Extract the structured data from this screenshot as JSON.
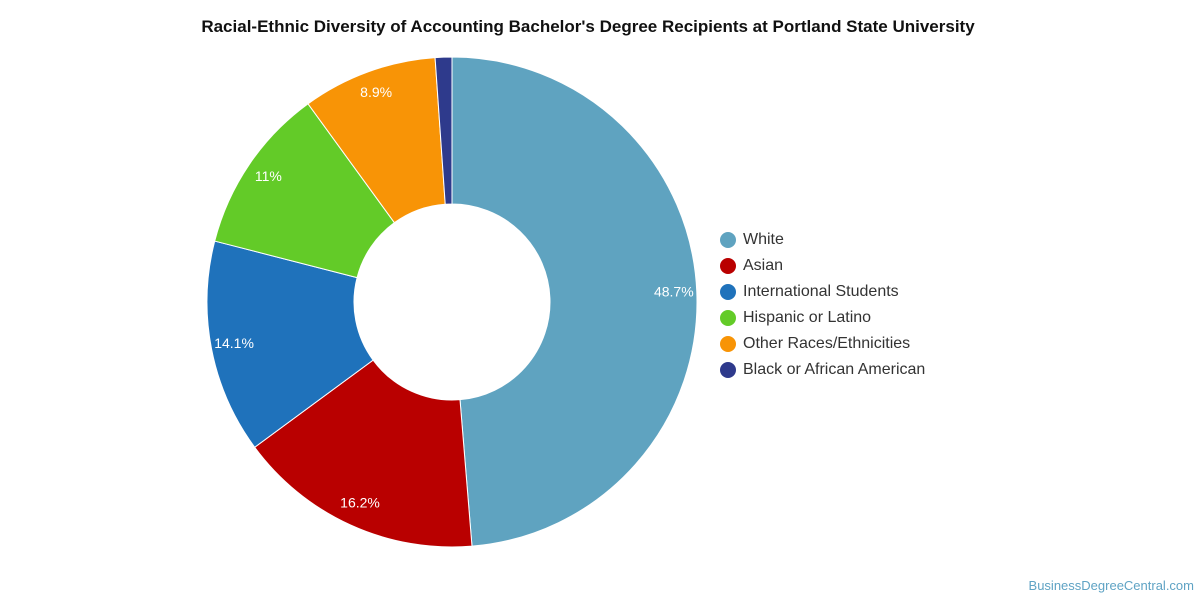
{
  "chart_data": {
    "type": "pie",
    "title": "Racial-Ethnic Diversity of Accounting Bachelor's Degree Recipients at Portland State University",
    "legend_position": "right",
    "slices": [
      {
        "label": "White",
        "value": 48.7,
        "data_label": "48.7%",
        "color": "#5fa3c0"
      },
      {
        "label": "Asian",
        "value": 16.2,
        "data_label": "16.2%",
        "color": "#b90000"
      },
      {
        "label": "International Students",
        "value": 14.1,
        "data_label": "14.1%",
        "color": "#1f72bb"
      },
      {
        "label": "Hispanic or Latino",
        "value": 11.0,
        "data_label": "11%",
        "color": "#63cb28"
      },
      {
        "label": "Other Races/Ethnicities",
        "value": 8.9,
        "data_label": "8.9%",
        "color": "#f89406"
      },
      {
        "label": "Black or African American",
        "value": 1.1,
        "data_label": "",
        "color": "#2e3a8c"
      }
    ]
  },
  "watermark": "BusinessDegreeCentral.com"
}
